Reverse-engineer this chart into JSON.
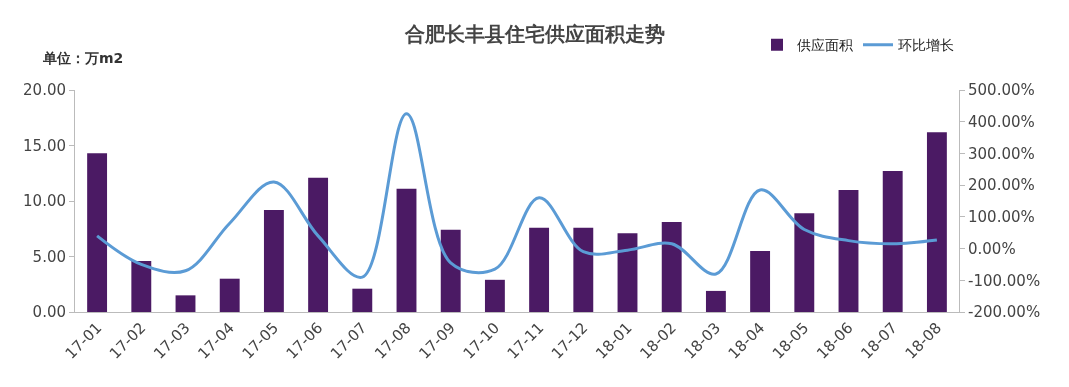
{
  "chart_data": {
    "type": "bar",
    "title": "合肥长丰县住宅供应面积走势",
    "annotations": [
      "单位：万m2"
    ],
    "categories": [
      "17-01",
      "17-02",
      "17-03",
      "17-04",
      "17-05",
      "17-06",
      "17-07",
      "17-08",
      "17-09",
      "17-10",
      "17-11",
      "17-12",
      "18-01",
      "18-02",
      "18-03",
      "18-04",
      "18-05",
      "18-06",
      "18-07",
      "18-08"
    ],
    "series": [
      {
        "name": "供应面积",
        "color": "#4b1a64",
        "values": [
          14.3,
          4.6,
          1.5,
          3.0,
          9.2,
          12.1,
          2.1,
          11.1,
          7.4,
          2.9,
          7.6,
          7.6,
          7.1,
          8.1,
          1.9,
          5.5,
          8.9,
          11.0,
          12.7,
          16.2
        ]
      },
      {
        "name": "环比增长",
        "type": "line",
        "axis": "y2",
        "color": "#5b9bd5",
        "values": [
          40,
          -50,
          -70,
          80,
          210,
          40,
          -90,
          425,
          -45,
          -65,
          160,
          -10,
          -5,
          15,
          -80,
          185,
          60,
          25,
          15,
          27
        ]
      }
    ],
    "ylim": [
      0,
      20
    ],
    "yticks": [
      {
        "value": 0,
        "label": "0.00"
      },
      {
        "value": 5,
        "label": "5.00"
      },
      {
        "value": 10,
        "label": "10.00"
      },
      {
        "value": 15,
        "label": "15.00"
      },
      {
        "value": 20,
        "label": "20.00"
      }
    ],
    "y2lim": [
      -200,
      500
    ],
    "y2ticks": [
      {
        "value": -200,
        "label": "-200.00%"
      },
      {
        "value": -100,
        "label": "-100.00%"
      },
      {
        "value": 0,
        "label": "0.00%"
      },
      {
        "value": 100,
        "label": "100.00%"
      },
      {
        "value": 200,
        "label": "200.00%"
      },
      {
        "value": 300,
        "label": "300.00%"
      },
      {
        "value": 400,
        "label": "400.00%"
      },
      {
        "value": 500,
        "label": "500.00%"
      }
    ],
    "grid": false,
    "legend": "top right",
    "marker": "none",
    "line_style": "solid"
  }
}
